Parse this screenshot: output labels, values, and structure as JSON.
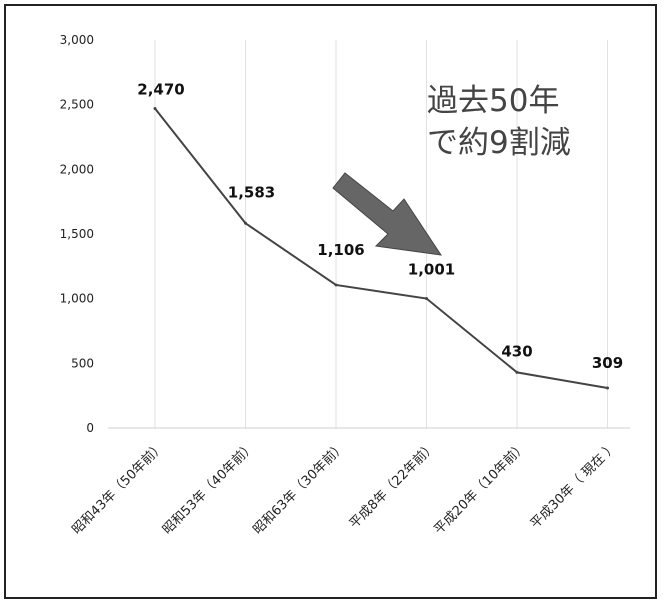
{
  "chart_data": {
    "type": "line",
    "categories": [
      "昭和43年（50年前）",
      "昭和53年（40年前）",
      "昭和63年（30年前）",
      "平成8年（22年前）",
      "平成20年（10年前）",
      "平成30年（ 現在 ）"
    ],
    "values": [
      2470,
      1583,
      1106,
      1001,
      430,
      309
    ],
    "value_labels": [
      "2,470",
      "1,583",
      "1,106",
      "1,001",
      "430",
      "309"
    ],
    "yticks": [
      0,
      500,
      1000,
      1500,
      2000,
      2500,
      3000
    ],
    "ytick_labels": [
      "0",
      "500",
      "1,000",
      "1,500",
      "2,000",
      "2,500",
      "3,000"
    ],
    "ylim": [
      0,
      3000
    ],
    "grid": "vertical",
    "line_color": "#444444",
    "annotation": {
      "line1": "過去50年",
      "line2": "で約9割減",
      "arrow": "down-right-arrow"
    }
  }
}
